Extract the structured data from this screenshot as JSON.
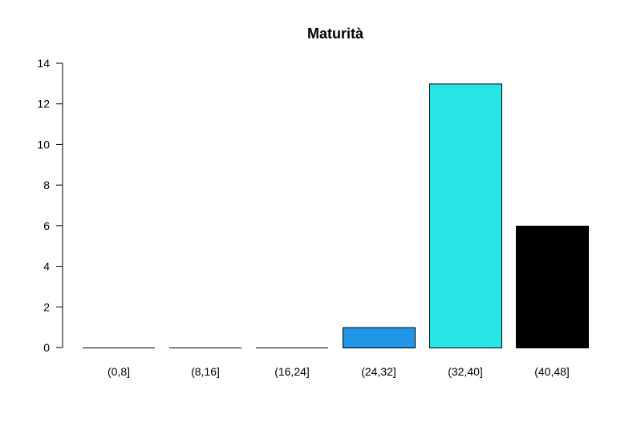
{
  "chart_data": {
    "type": "bar",
    "title": "Maturità",
    "xlabel": "",
    "ylabel": "",
    "categories": [
      "(0,8]",
      "(8,16]",
      "(16,24]",
      "(24,32]",
      "(32,40]",
      "(40,48]"
    ],
    "values": [
      0,
      0,
      0,
      1,
      13,
      6
    ],
    "colors": [
      "#ffffff",
      "#ffffff",
      "#ffffff",
      "#2196e6",
      "#29e4e4",
      "#000000"
    ],
    "ylim": [
      0,
      14
    ],
    "yticks": [
      0,
      2,
      4,
      6,
      8,
      10,
      12,
      14
    ],
    "grid": false,
    "legend": "none"
  }
}
